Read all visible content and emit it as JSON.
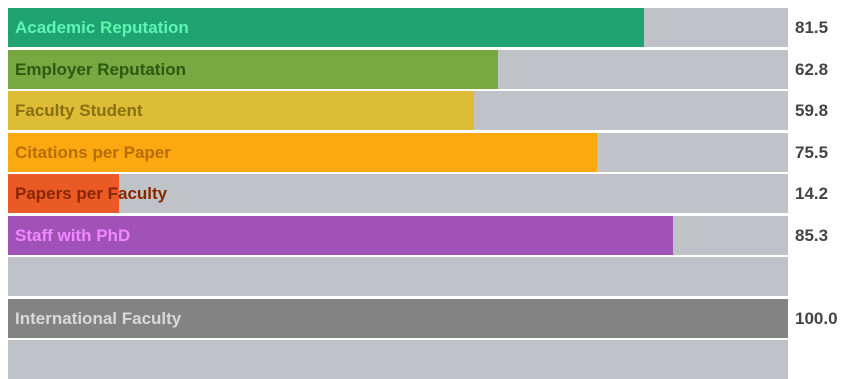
{
  "chart_data": {
    "type": "bar",
    "orientation": "horizontal",
    "xlim": [
      0,
      100
    ],
    "track_color": "#bfc2c6",
    "categories": [
      "Academic Reputation",
      "Employer Reputation",
      "Faculty Student",
      "Citations per Paper",
      "Papers per Faculty",
      "Staff with PhD",
      "",
      "International Faculty",
      ""
    ],
    "values": [
      81.5,
      62.8,
      59.8,
      75.5,
      14.2,
      85.3,
      null,
      100.0,
      null
    ],
    "value_labels": [
      "81.5",
      "62.8",
      "59.8",
      "75.5",
      "14.2",
      "85.3",
      "",
      "100.0",
      ""
    ],
    "bar_colors": [
      "#1fa371",
      "#77a842",
      "#ddbd35",
      "#fca911",
      "#ea5a24",
      "#a152b6",
      "#bfc2c6",
      "#838383",
      "#bfc2c6"
    ],
    "label_colors": [
      "#5ef5b2",
      "#2b5a12",
      "#8a7010",
      "#b86d00",
      "#8a2500",
      "#f089ff",
      "#bfc2c6",
      "#d9d9d9",
      "#bfc2c6"
    ]
  }
}
